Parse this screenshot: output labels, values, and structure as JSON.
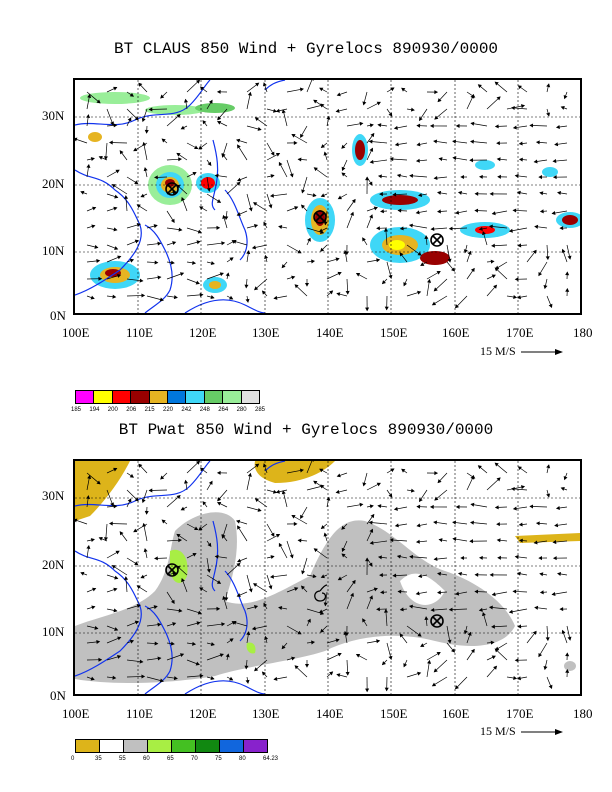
{
  "panels": {
    "top": {
      "title": "BT CLAUS 850 Wind + Gyrelocs 890930/0000",
      "lat_labels": [
        "30N",
        "20N",
        "10N",
        "0N"
      ],
      "lon_labels": [
        "100E",
        "110E",
        "120E",
        "130E",
        "140E",
        "150E",
        "160E",
        "170E",
        "180"
      ],
      "ref_vector": "15 M/S",
      "colorbar": {
        "labels": [
          "185",
          "194",
          "200",
          "206",
          "215",
          "220",
          "242",
          "248",
          "264",
          "280",
          "285"
        ],
        "colors": [
          "#ff00ff",
          "#ffff00",
          "#ff0000",
          "#990000",
          "#e6b422",
          "#0077dd",
          "#3fd7f7",
          "#66cc66",
          "#99ee99",
          "#e0e0e0"
        ]
      },
      "gyre_marks": [
        "circle-x",
        "circle-x",
        "circle-x"
      ]
    },
    "bottom": {
      "title": "BT Pwat 850 Wind + Gyrelocs 890930/0000",
      "lat_labels": [
        "30N",
        "20N",
        "10N",
        "0N"
      ],
      "lon_labels": [
        "100E",
        "110E",
        "120E",
        "130E",
        "140E",
        "150E",
        "160E",
        "170E",
        "180"
      ],
      "ref_vector": "15 M/S",
      "colorbar": {
        "labels": [
          "0",
          "35",
          "55",
          "60",
          "65",
          "70",
          "75",
          "80",
          "64.23"
        ],
        "colors": [
          "#ddb41a",
          "#ffffff",
          "#c0c0c0",
          "#a8ee44",
          "#44c022",
          "#118811",
          "#1166dd",
          "#8822cc"
        ]
      },
      "gyre_marks": [
        "circle-x",
        "circle-x",
        "typhoon-symbol"
      ]
    }
  }
}
